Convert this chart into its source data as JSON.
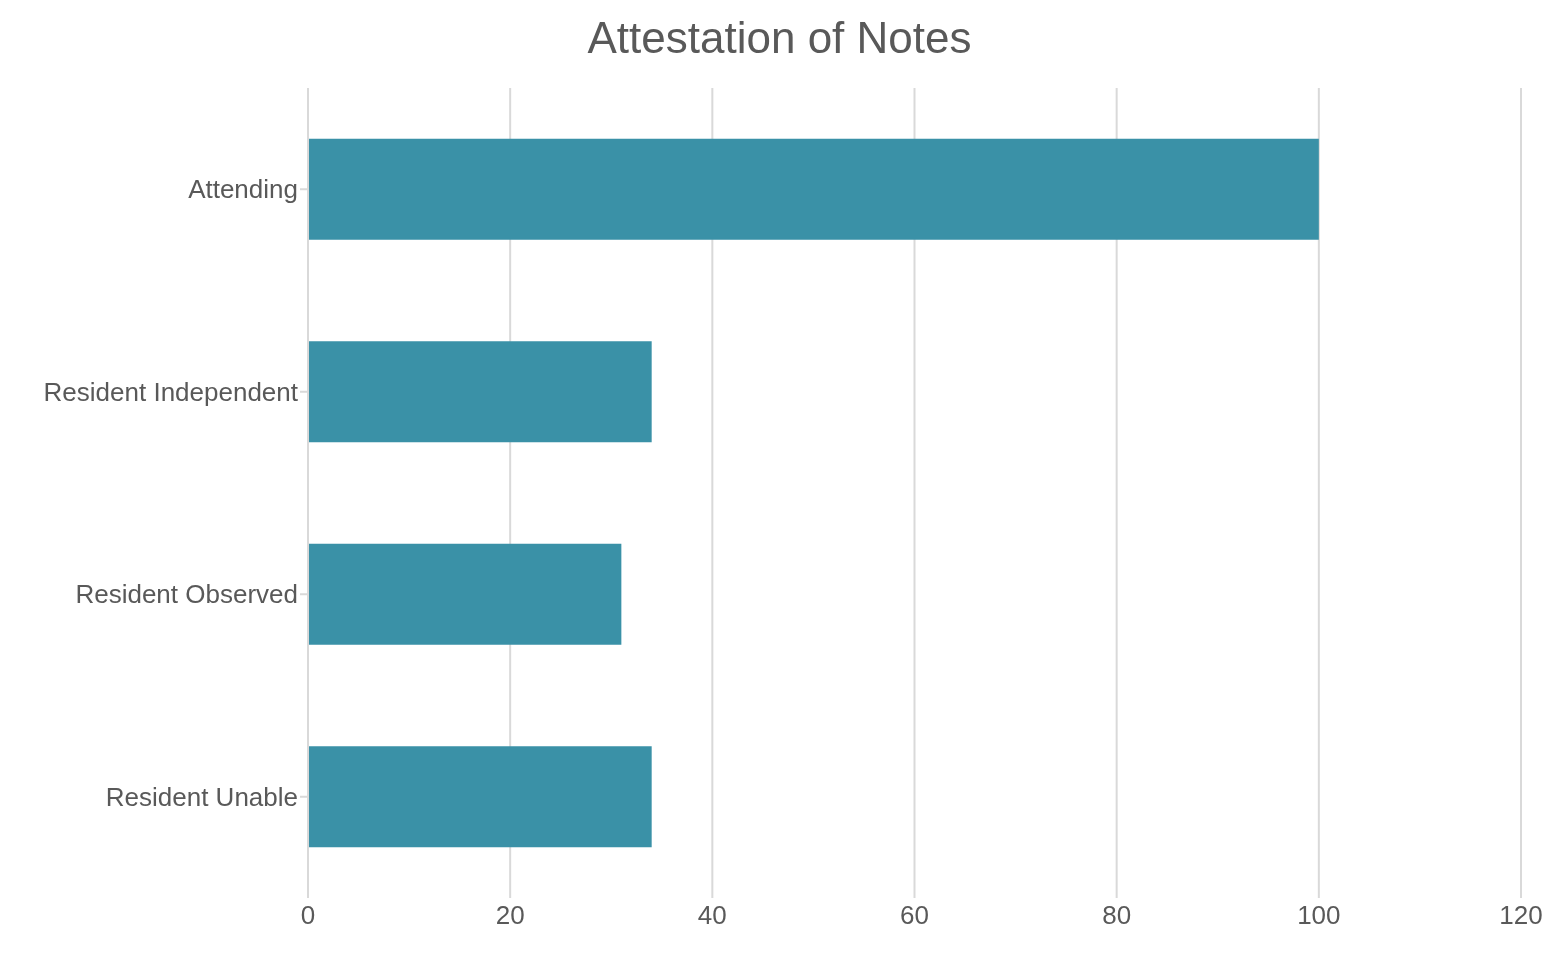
{
  "chart_data": {
    "type": "bar",
    "orientation": "horizontal",
    "title": "Attestation of Notes",
    "categories": [
      "Attending",
      "Resident Independent",
      "Resident Observed",
      "Resident Unable"
    ],
    "values": [
      100,
      34,
      31,
      34
    ],
    "color": "#3a91a7",
    "xlim": [
      0,
      120
    ],
    "xticks": [
      0,
      20,
      40,
      60,
      80,
      100,
      120
    ],
    "grid": "x"
  }
}
